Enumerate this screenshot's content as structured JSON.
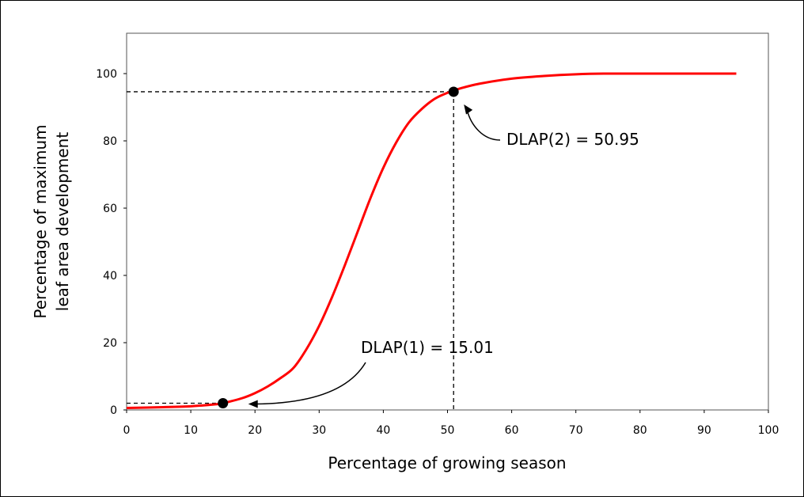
{
  "chart_data": {
    "type": "line",
    "xlabel": "Percentage of growing season",
    "ylabel_lines": [
      "Percentage of maximum",
      "leaf area development"
    ],
    "xlim": [
      0,
      100
    ],
    "ylim": [
      0,
      112
    ],
    "x_ticks": [
      0,
      10,
      20,
      30,
      40,
      50,
      60,
      70,
      80,
      90,
      100
    ],
    "y_ticks": [
      0,
      20,
      40,
      60,
      80,
      100
    ],
    "grid": false,
    "series": [
      {
        "color": "#ff0000",
        "points": [
          [
            0,
            0.6
          ],
          [
            5,
            0.8
          ],
          [
            10,
            1.1
          ],
          [
            14,
            1.7
          ],
          [
            15,
            2.0
          ],
          [
            18,
            3.5
          ],
          [
            20,
            5.0
          ],
          [
            22,
            7.0
          ],
          [
            24,
            9.5
          ],
          [
            26,
            12.5
          ],
          [
            28,
            18.0
          ],
          [
            30,
            25.0
          ],
          [
            32,
            33.5
          ],
          [
            34,
            43.0
          ],
          [
            36,
            53.0
          ],
          [
            38,
            63.0
          ],
          [
            40,
            72.0
          ],
          [
            42,
            79.5
          ],
          [
            44,
            85.5
          ],
          [
            46,
            89.5
          ],
          [
            48,
            92.5
          ],
          [
            50,
            94.3
          ],
          [
            52,
            95.6
          ],
          [
            55,
            97.0
          ],
          [
            60,
            98.5
          ],
          [
            65,
            99.3
          ],
          [
            70,
            99.8
          ],
          [
            75,
            100
          ],
          [
            85,
            100
          ],
          [
            95,
            100
          ]
        ]
      }
    ],
    "markers": [
      {
        "x": 15.01,
        "y": 2.0,
        "color": "#000000"
      },
      {
        "x": 50.95,
        "y": 94.6,
        "color": "#000000"
      }
    ],
    "annotations": [
      {
        "text": "DLAP(1) = 15.01",
        "x": 15.01,
        "y": 2.0
      },
      {
        "text": "DLAP(2) = 50.95",
        "x": 50.95,
        "y": 94.6
      }
    ]
  }
}
